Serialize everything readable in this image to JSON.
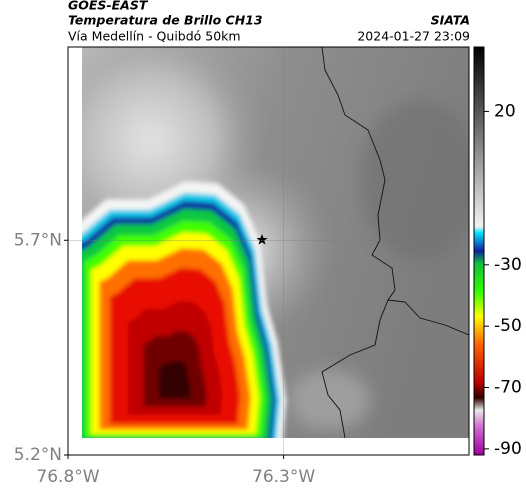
{
  "header": {
    "satellite": "GOES-EAST",
    "product": "Temperatura de Brillo CH13",
    "region": "Vía Medellín - Quibdó 50km",
    "source": "SIATA",
    "timestamp": "2024-01-27 23:09"
  },
  "map": {
    "xlim": [
      -76.8,
      -75.87
    ],
    "ylim": [
      5.2,
      6.15
    ],
    "xticks": [
      {
        "value": -76.8,
        "label": "76.8°W"
      },
      {
        "value": -76.3,
        "label": "76.3°W"
      }
    ],
    "yticks": [
      {
        "value": 5.2,
        "label": "5.2°N"
      },
      {
        "value": 5.7,
        "label": "5.7°N"
      }
    ],
    "grid": true
  },
  "colorbar": {
    "lim": [
      -92,
      41
    ],
    "ticks": [
      20,
      -30,
      -50,
      -70,
      -90
    ]
  }
}
